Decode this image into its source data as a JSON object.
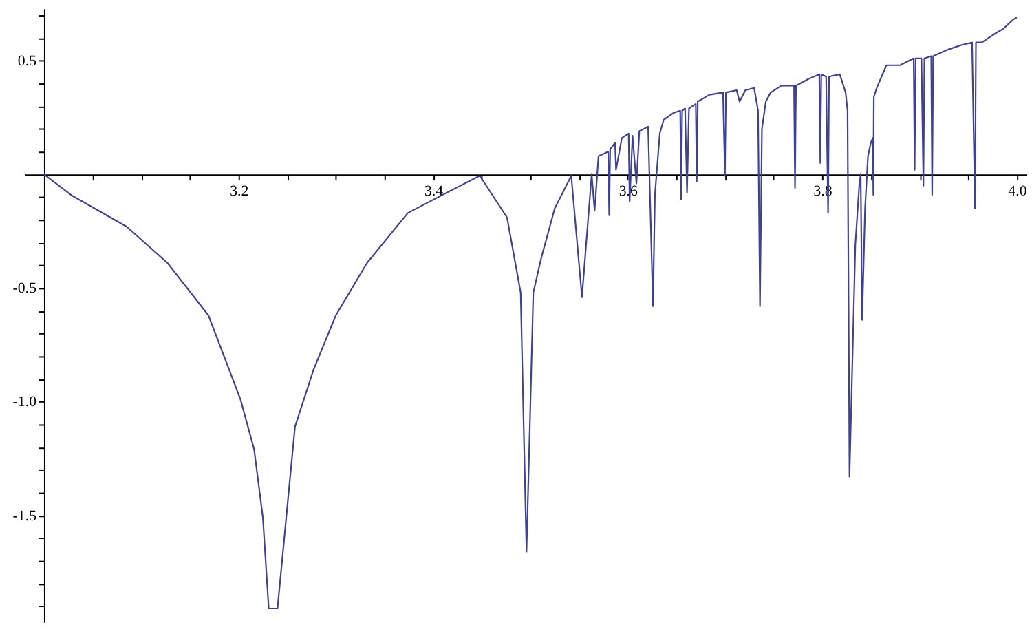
{
  "chart_data": {
    "type": "line",
    "xlim": [
      2.98,
      4.01
    ],
    "ylim": [
      -1.97,
      0.73
    ],
    "xticks": [
      {
        "value": 3.05,
        "label": null
      },
      {
        "value": 3.1,
        "label": null
      },
      {
        "value": 3.15,
        "label": null
      },
      {
        "value": 3.2,
        "label": "3.2"
      },
      {
        "value": 3.25,
        "label": null
      },
      {
        "value": 3.3,
        "label": null
      },
      {
        "value": 3.35,
        "label": null
      },
      {
        "value": 3.4,
        "label": "3.4"
      },
      {
        "value": 3.45,
        "label": null
      },
      {
        "value": 3.5,
        "label": null
      },
      {
        "value": 3.55,
        "label": null
      },
      {
        "value": 3.6,
        "label": "3.6"
      },
      {
        "value": 3.65,
        "label": null
      },
      {
        "value": 3.7,
        "label": null
      },
      {
        "value": 3.75,
        "label": null
      },
      {
        "value": 3.8,
        "label": "3.8"
      },
      {
        "value": 3.85,
        "label": null
      },
      {
        "value": 3.9,
        "label": null
      },
      {
        "value": 3.95,
        "label": null
      },
      {
        "value": 4.0,
        "label": "4.0"
      }
    ],
    "yticks": [
      {
        "value": -1.9,
        "label": null
      },
      {
        "value": -1.8,
        "label": null
      },
      {
        "value": -1.7,
        "label": null
      },
      {
        "value": -1.6,
        "label": null
      },
      {
        "value": -1.5,
        "label": "-1.5"
      },
      {
        "value": -1.4,
        "label": null
      },
      {
        "value": -1.3,
        "label": null
      },
      {
        "value": -1.2,
        "label": null
      },
      {
        "value": -1.1,
        "label": null
      },
      {
        "value": -1.0,
        "label": "-1.0"
      },
      {
        "value": -0.9,
        "label": null
      },
      {
        "value": -0.8,
        "label": null
      },
      {
        "value": -0.7,
        "label": null
      },
      {
        "value": -0.6,
        "label": null
      },
      {
        "value": -0.5,
        "label": "-0.5"
      },
      {
        "value": -0.4,
        "label": null
      },
      {
        "value": -0.3,
        "label": null
      },
      {
        "value": -0.2,
        "label": null
      },
      {
        "value": -0.1,
        "label": null
      },
      {
        "value": 0.1,
        "label": null
      },
      {
        "value": 0.2,
        "label": null
      },
      {
        "value": 0.3,
        "label": null
      },
      {
        "value": 0.4,
        "label": null
      },
      {
        "value": 0.5,
        "label": "0.5"
      },
      {
        "value": 0.6,
        "label": null
      },
      {
        "value": 0.7,
        "label": null
      }
    ],
    "grid": false,
    "marker": "none",
    "line_style": "solid",
    "series": [
      {
        "color": "#3f3f9c",
        "x": [
          3.0,
          3.029,
          3.085,
          3.127,
          3.169,
          3.202,
          3.216,
          3.225,
          3.231,
          3.24,
          3.249,
          3.258,
          3.277,
          3.3,
          3.332,
          3.374,
          3.416,
          3.448,
          3.476,
          3.49,
          3.496,
          3.503,
          3.511,
          3.525,
          3.542,
          3.553,
          3.563,
          3.566,
          3.57,
          3.58,
          3.581,
          3.582,
          3.587,
          3.588,
          3.594,
          3.601,
          3.602,
          3.605,
          3.609,
          3.612,
          3.621,
          3.626,
          3.628,
          3.633,
          3.637,
          3.647,
          3.654,
          3.655,
          3.656,
          3.659,
          3.661,
          3.663,
          3.67,
          3.671,
          3.672,
          3.684,
          3.698,
          3.7,
          3.701,
          3.712,
          3.715,
          3.721,
          3.73,
          3.734,
          3.736,
          3.738,
          3.742,
          3.747,
          3.758,
          3.771,
          3.772,
          3.773,
          3.786,
          3.797,
          3.798,
          3.799,
          3.804,
          3.806,
          3.807,
          3.818,
          3.824,
          3.826,
          3.828,
          3.834,
          3.838,
          3.8395,
          3.841,
          3.844,
          3.847,
          3.85,
          3.852,
          3.8525,
          3.853,
          3.856,
          3.866,
          3.88,
          3.894,
          3.895,
          3.896,
          3.902,
          3.904,
          3.905,
          3.912,
          3.913,
          3.914,
          3.93,
          3.944,
          3.954,
          3.957,
          3.958,
          3.964,
          3.978,
          3.986,
          3.996,
          4.0
        ],
        "values": [
          0,
          -0.094,
          -0.23,
          -0.39,
          -0.62,
          -0.99,
          -1.21,
          -1.51,
          -1.91,
          -1.91,
          -1.51,
          -1.11,
          -0.86,
          -0.62,
          -0.39,
          -0.17,
          -0.076,
          -0.006,
          -0.19,
          -0.52,
          -1.66,
          -0.52,
          -0.37,
          -0.15,
          -0.006,
          -0.54,
          0.0,
          -0.16,
          0.08,
          0.1,
          -0.18,
          0.11,
          0.14,
          0.02,
          0.16,
          0.18,
          -0.12,
          0.17,
          -0.04,
          0.19,
          0.21,
          -0.58,
          -0.09,
          0.18,
          0.24,
          0.27,
          0.28,
          -0.11,
          0.28,
          0.29,
          -0.08,
          0.29,
          0.31,
          -0.03,
          0.32,
          0.35,
          0.36,
          -0.006,
          0.36,
          0.37,
          0.32,
          0.37,
          0.38,
          0.28,
          -0.58,
          0.2,
          0.32,
          0.36,
          0.39,
          0.39,
          -0.06,
          0.39,
          0.42,
          0.44,
          0.05,
          0.44,
          0.43,
          -0.17,
          0.43,
          0.44,
          0.36,
          0.28,
          -1.33,
          -0.31,
          -0.05,
          0.0,
          -0.64,
          -0.15,
          0.08,
          0.14,
          0.16,
          -0.09,
          0.34,
          0.38,
          0.48,
          0.48,
          0.51,
          0.02,
          0.51,
          0.51,
          -0.05,
          0.51,
          0.52,
          -0.09,
          0.52,
          0.55,
          0.57,
          0.58,
          -0.15,
          0.58,
          0.58,
          0.62,
          0.64,
          0.68,
          0.69
        ]
      }
    ]
  }
}
